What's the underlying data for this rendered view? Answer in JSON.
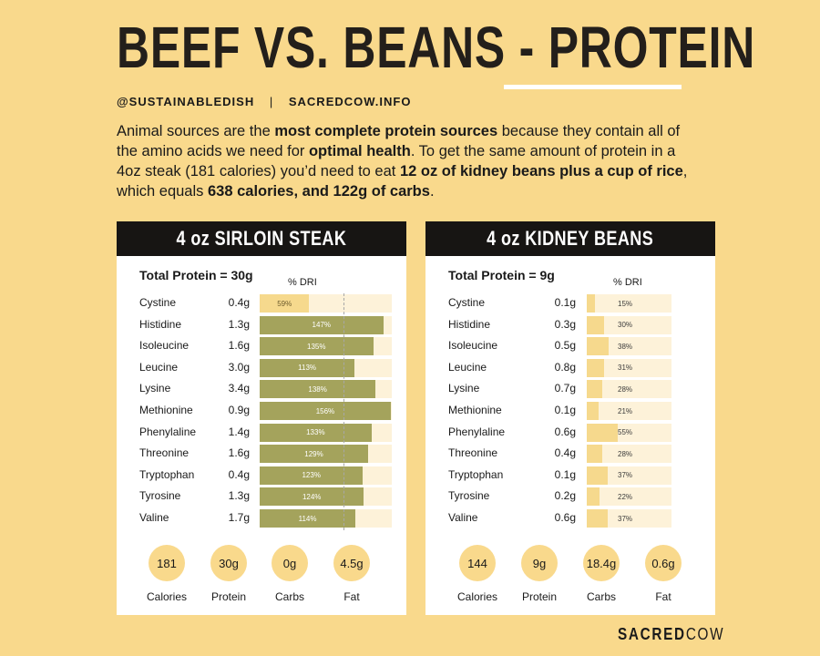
{
  "title": "BEEF VS. BEANS - PROTEIN",
  "handles": {
    "instagram": "@SUSTAINABLEDISH",
    "separator": "|",
    "site": "SACREDCOW.INFO"
  },
  "intro": {
    "p1": "Animal sources are the ",
    "b1": "most complete protein sources",
    "p2": " because they contain all of the amino acids we need for ",
    "b2": "optimal health",
    "p3": ". To get the same amount of protein in a 4oz steak (181 calories) you’d need to eat ",
    "b3": "12 oz of kidney beans plus a cup of rice",
    "p4": ", which equals ",
    "b4": "638 calories, and 122g of carbs",
    "p5": "."
  },
  "dri_label": "% DRI",
  "cards": [
    {
      "title": "4 oz SIRLOIN STEAK",
      "total": "Total Protein = 30g",
      "amino": [
        {
          "name": "Cystine",
          "grams": "0.4g",
          "pct": 59,
          "pct_label": "59%"
        },
        {
          "name": "Histidine",
          "grams": "1.3g",
          "pct": 147,
          "pct_label": "147%"
        },
        {
          "name": "Isoleucine",
          "grams": "1.6g",
          "pct": 135,
          "pct_label": "135%"
        },
        {
          "name": "Leucine",
          "grams": "3.0g",
          "pct": 113,
          "pct_label": "113%"
        },
        {
          "name": "Lysine",
          "grams": "3.4g",
          "pct": 138,
          "pct_label": "138%"
        },
        {
          "name": "Methionine",
          "grams": "0.9g",
          "pct": 156,
          "pct_label": "156%"
        },
        {
          "name": "Phenylaline",
          "grams": "1.4g",
          "pct": 133,
          "pct_label": "133%"
        },
        {
          "name": "Threonine",
          "grams": "1.6g",
          "pct": 129,
          "pct_label": "129%"
        },
        {
          "name": "Tryptophan",
          "grams": "0.4g",
          "pct": 123,
          "pct_label": "123%"
        },
        {
          "name": "Tyrosine",
          "grams": "1.3g",
          "pct": 124,
          "pct_label": "124%"
        },
        {
          "name": "Valine",
          "grams": "1.7g",
          "pct": 114,
          "pct_label": "114%"
        }
      ],
      "stats": [
        {
          "value": "181",
          "label": "Calories"
        },
        {
          "value": "30g",
          "label": "Protein"
        },
        {
          "value": "0g",
          "label": "Carbs"
        },
        {
          "value": "4.5g",
          "label": "Fat"
        }
      ]
    },
    {
      "title": "4 oz KIDNEY BEANS",
      "total": "Total Protein = 9g",
      "amino": [
        {
          "name": "Cystine",
          "grams": "0.1g",
          "pct": 15,
          "pct_label": "15%"
        },
        {
          "name": "Histidine",
          "grams": "0.3g",
          "pct": 30,
          "pct_label": "30%"
        },
        {
          "name": "Isoleucine",
          "grams": "0.5g",
          "pct": 38,
          "pct_label": "38%"
        },
        {
          "name": "Leucine",
          "grams": "0.8g",
          "pct": 31,
          "pct_label": "31%"
        },
        {
          "name": "Lysine",
          "grams": "0.7g",
          "pct": 28,
          "pct_label": "28%"
        },
        {
          "name": "Methionine",
          "grams": "0.1g",
          "pct": 21,
          "pct_label": "21%"
        },
        {
          "name": "Phenylaline",
          "grams": "0.6g",
          "pct": 55,
          "pct_label": "55%"
        },
        {
          "name": "Threonine",
          "grams": "0.4g",
          "pct": 28,
          "pct_label": "28%"
        },
        {
          "name": "Tryptophan",
          "grams": "0.1g",
          "pct": 37,
          "pct_label": "37%"
        },
        {
          "name": "Tyrosine",
          "grams": "0.2g",
          "pct": 22,
          "pct_label": "22%"
        },
        {
          "name": "Valine",
          "grams": "0.6g",
          "pct": 37,
          "pct_label": "37%"
        }
      ],
      "stats": [
        {
          "value": "144",
          "label": "Calories"
        },
        {
          "value": "9g",
          "label": "Protein"
        },
        {
          "value": "18.4g",
          "label": "Carbs"
        },
        {
          "value": "0.6g",
          "label": "Fat"
        }
      ]
    }
  ],
  "logo": {
    "bold": "SACRED",
    "light": "COW"
  },
  "colors": {
    "background": "#f9d98c",
    "steak_bar": "#a4a35c",
    "bean_bar": "#f6d98d",
    "header": "#171513"
  }
}
